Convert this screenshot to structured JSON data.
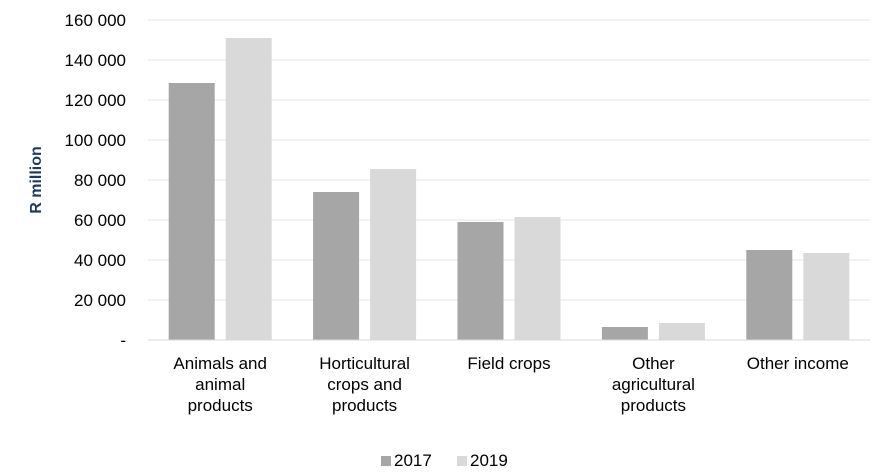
{
  "chart_data": {
    "type": "bar",
    "ylabel": "R million",
    "categories": [
      [
        "Animals and",
        "animal",
        "products"
      ],
      [
        "Horticultural",
        "crops and",
        "products"
      ],
      [
        "Field crops"
      ],
      [
        "Other",
        "agricultural",
        "products"
      ],
      [
        "Other income"
      ]
    ],
    "series": [
      {
        "name": "2017",
        "color": "#a6a6a6",
        "values": [
          128500,
          74000,
          59000,
          6500,
          45000
        ]
      },
      {
        "name": "2019",
        "color": "#d9d9d9",
        "values": [
          151000,
          85500,
          61500,
          8500,
          43500
        ]
      }
    ],
    "ylim": [
      0,
      160000
    ],
    "yticks": [
      {
        "value": 0,
        "label": "-"
      },
      {
        "value": 20000,
        "label": "20 000"
      },
      {
        "value": 40000,
        "label": "40 000"
      },
      {
        "value": 60000,
        "label": "60 000"
      },
      {
        "value": 80000,
        "label": "80 000"
      },
      {
        "value": 100000,
        "label": "100 000"
      },
      {
        "value": 120000,
        "label": "120 000"
      },
      {
        "value": 140000,
        "label": "140 000"
      },
      {
        "value": 160000,
        "label": "160 000"
      }
    ],
    "grid": "horizontal",
    "legend_position": "bottom"
  }
}
